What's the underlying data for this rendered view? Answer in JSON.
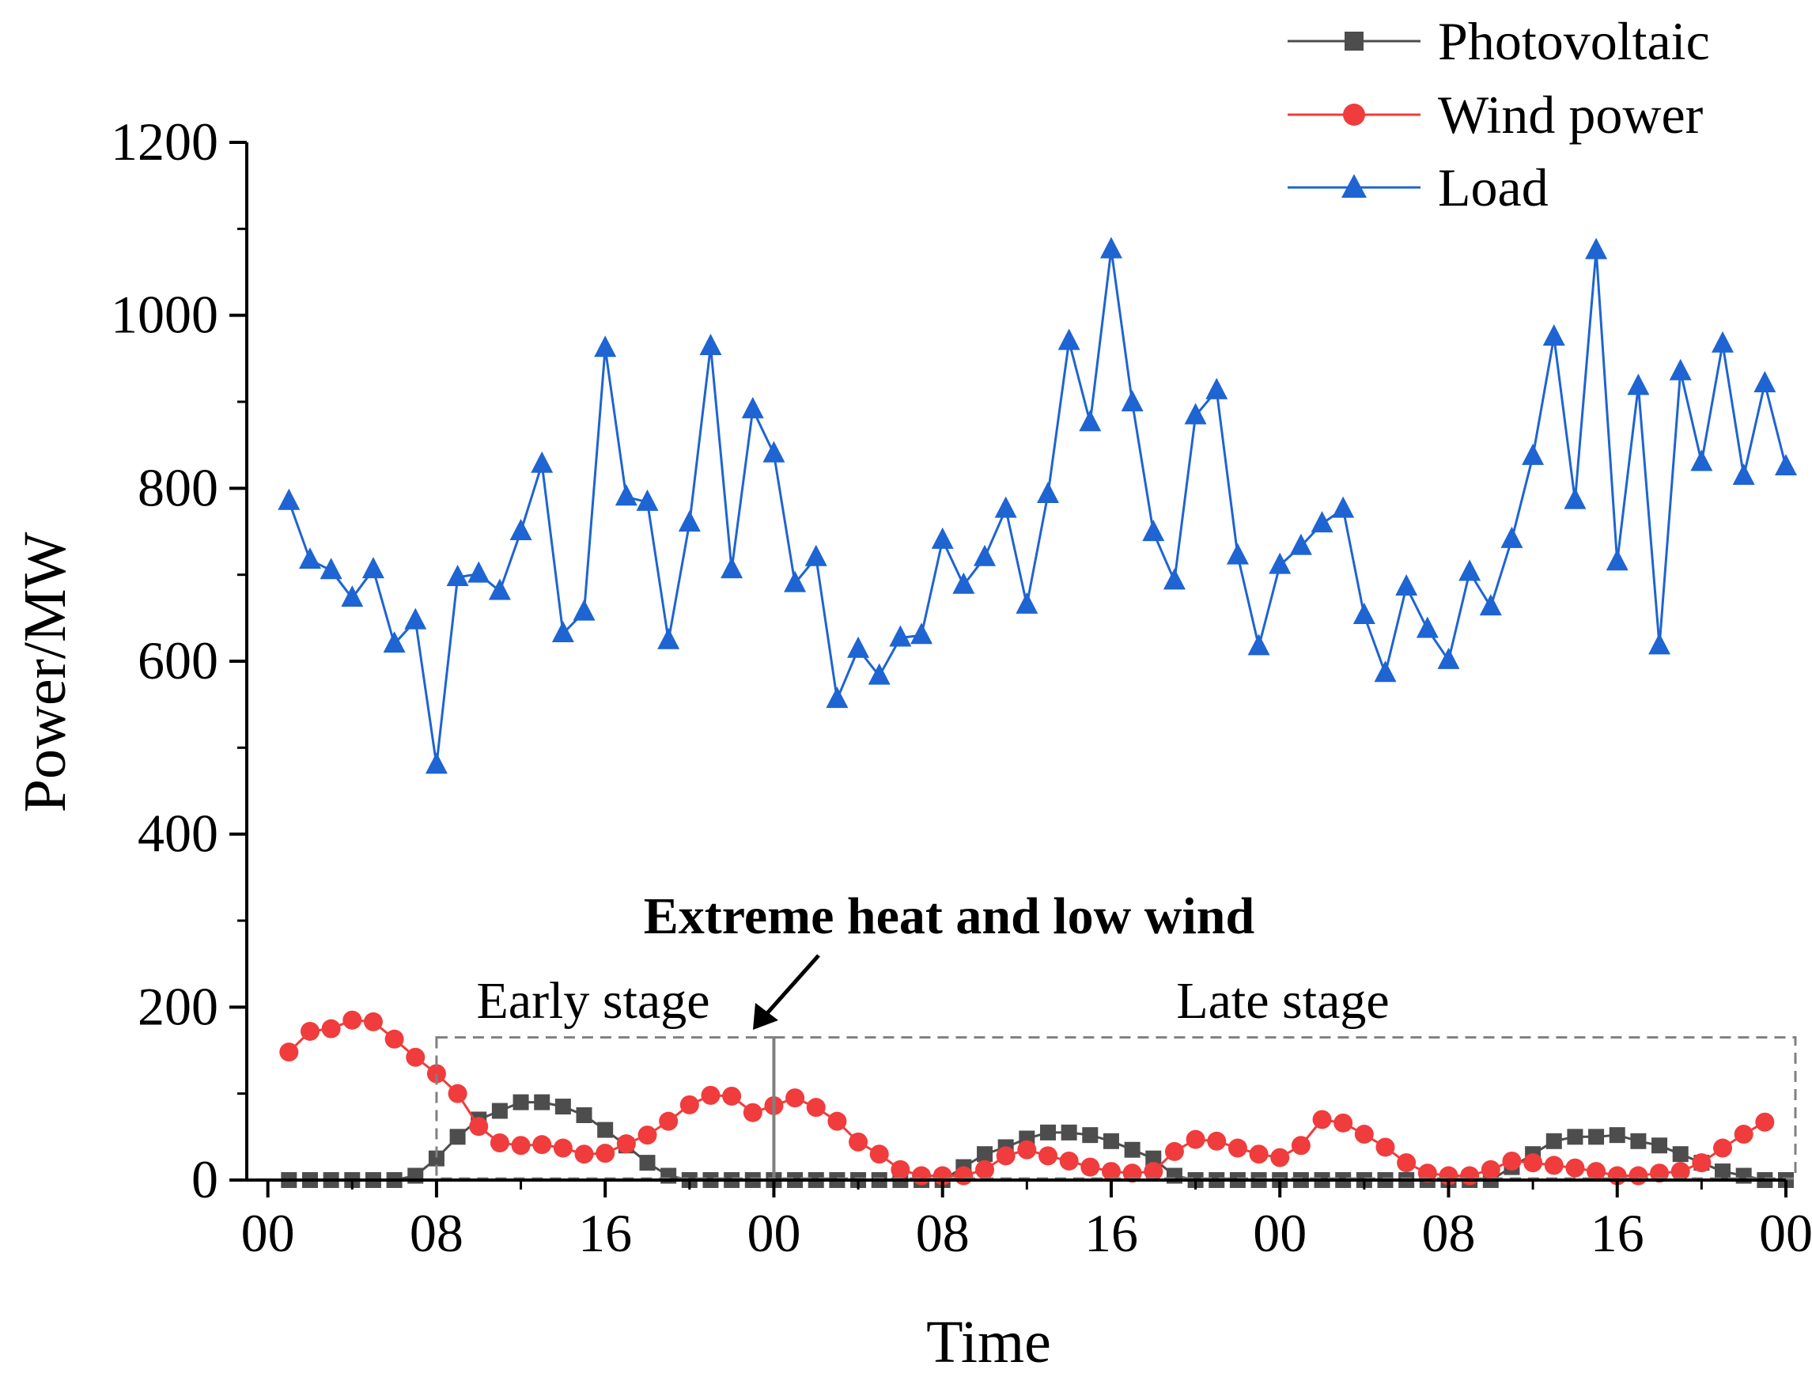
{
  "chart_data": {
    "type": "line",
    "title": "",
    "xlabel": "Time",
    "ylabel": "Power/MW",
    "x_range_hours": [
      -1,
      72
    ],
    "x_tick_labels": [
      {
        "hour": 0,
        "label": "00"
      },
      {
        "hour": 8,
        "label": "08"
      },
      {
        "hour": 16,
        "label": "16"
      },
      {
        "hour": 24,
        "label": "00"
      },
      {
        "hour": 32,
        "label": "08"
      },
      {
        "hour": 40,
        "label": "16"
      },
      {
        "hour": 48,
        "label": "00"
      },
      {
        "hour": 56,
        "label": "08"
      },
      {
        "hour": 64,
        "label": "16"
      },
      {
        "hour": 72,
        "label": "00"
      }
    ],
    "ylim": [
      0,
      1200
    ],
    "y_ticks": [
      0,
      200,
      400,
      600,
      800,
      1000,
      1200
    ],
    "grid": false,
    "legend_position": "top-right",
    "x_hours": [
      1,
      2,
      3,
      4,
      5,
      6,
      7,
      8,
      9,
      10,
      11,
      12,
      13,
      14,
      15,
      16,
      17,
      18,
      19,
      20,
      21,
      22,
      23,
      24,
      25,
      26,
      27,
      28,
      29,
      30,
      31,
      32,
      33,
      34,
      35,
      36,
      37,
      38,
      39,
      40,
      41,
      42,
      43,
      44,
      45,
      46,
      47,
      48,
      49,
      50,
      51,
      52,
      53,
      54,
      55,
      56,
      57,
      58,
      59,
      60,
      61,
      62,
      63,
      64,
      65,
      66,
      67,
      68,
      69,
      70,
      71,
      72
    ],
    "series": [
      {
        "name": "Photovoltaic",
        "color": "#4d4d4d",
        "marker": "square",
        "values": [
          0,
          0,
          0,
          0,
          0,
          0,
          5,
          25,
          50,
          70,
          80,
          90,
          90,
          85,
          75,
          58,
          40,
          20,
          5,
          0,
          0,
          0,
          0,
          0,
          0,
          0,
          0,
          0,
          0,
          0,
          0,
          0,
          15,
          30,
          38,
          48,
          55,
          55,
          52,
          45,
          35,
          25,
          5,
          0,
          0,
          0,
          0,
          0,
          0,
          0,
          0,
          0,
          0,
          0,
          0,
          0,
          0,
          0,
          15,
          30,
          45,
          50,
          50,
          52,
          45,
          40,
          30,
          20,
          10,
          5,
          0,
          0
        ]
      },
      {
        "name": "Wind power",
        "color": "#f03c3c",
        "marker": "circle",
        "values": [
          148,
          172,
          175,
          185,
          183,
          163,
          142,
          123,
          100,
          62,
          43,
          40,
          41,
          37,
          30,
          31,
          42,
          52,
          68,
          87,
          98,
          97,
          78,
          86,
          95,
          84,
          68,
          44,
          30,
          12,
          5,
          5,
          5,
          12,
          28,
          35,
          28,
          22,
          15,
          10,
          8,
          10,
          33,
          47,
          45,
          37,
          30,
          26,
          40,
          70,
          66,
          53,
          38,
          20,
          8,
          5,
          5,
          12,
          22,
          20,
          17,
          14,
          10,
          5,
          5,
          8,
          10,
          20,
          37,
          53,
          67,
          null
        ]
      },
      {
        "name": "Load",
        "color": "#1e64d2",
        "marker": "triangle",
        "values": [
          785,
          717,
          705,
          673,
          706,
          620,
          647,
          480,
          697,
          701,
          681,
          750,
          828,
          632,
          657,
          962,
          790,
          784,
          624,
          760,
          964,
          706,
          891,
          840,
          690,
          720,
          556,
          614,
          583,
          627,
          630,
          740,
          688,
          720,
          776,
          665,
          793,
          970,
          876,
          1076,
          899,
          749,
          693,
          884,
          913,
          722,
          617,
          711,
          733,
          759,
          776,
          653,
          586,
          686,
          637,
          601,
          703,
          663,
          741,
          837,
          975,
          786,
          1075,
          715,
          918,
          618,
          935,
          830,
          967,
          814,
          921,
          825
        ]
      }
    ],
    "annotations": {
      "title": "Extreme heat and low wind",
      "early_stage": "Early stage",
      "late_stage": "Late stage",
      "early_stage_hours": [
        8,
        24
      ],
      "late_stage_hours": [
        24,
        72
      ],
      "box_top_value": 165
    }
  }
}
